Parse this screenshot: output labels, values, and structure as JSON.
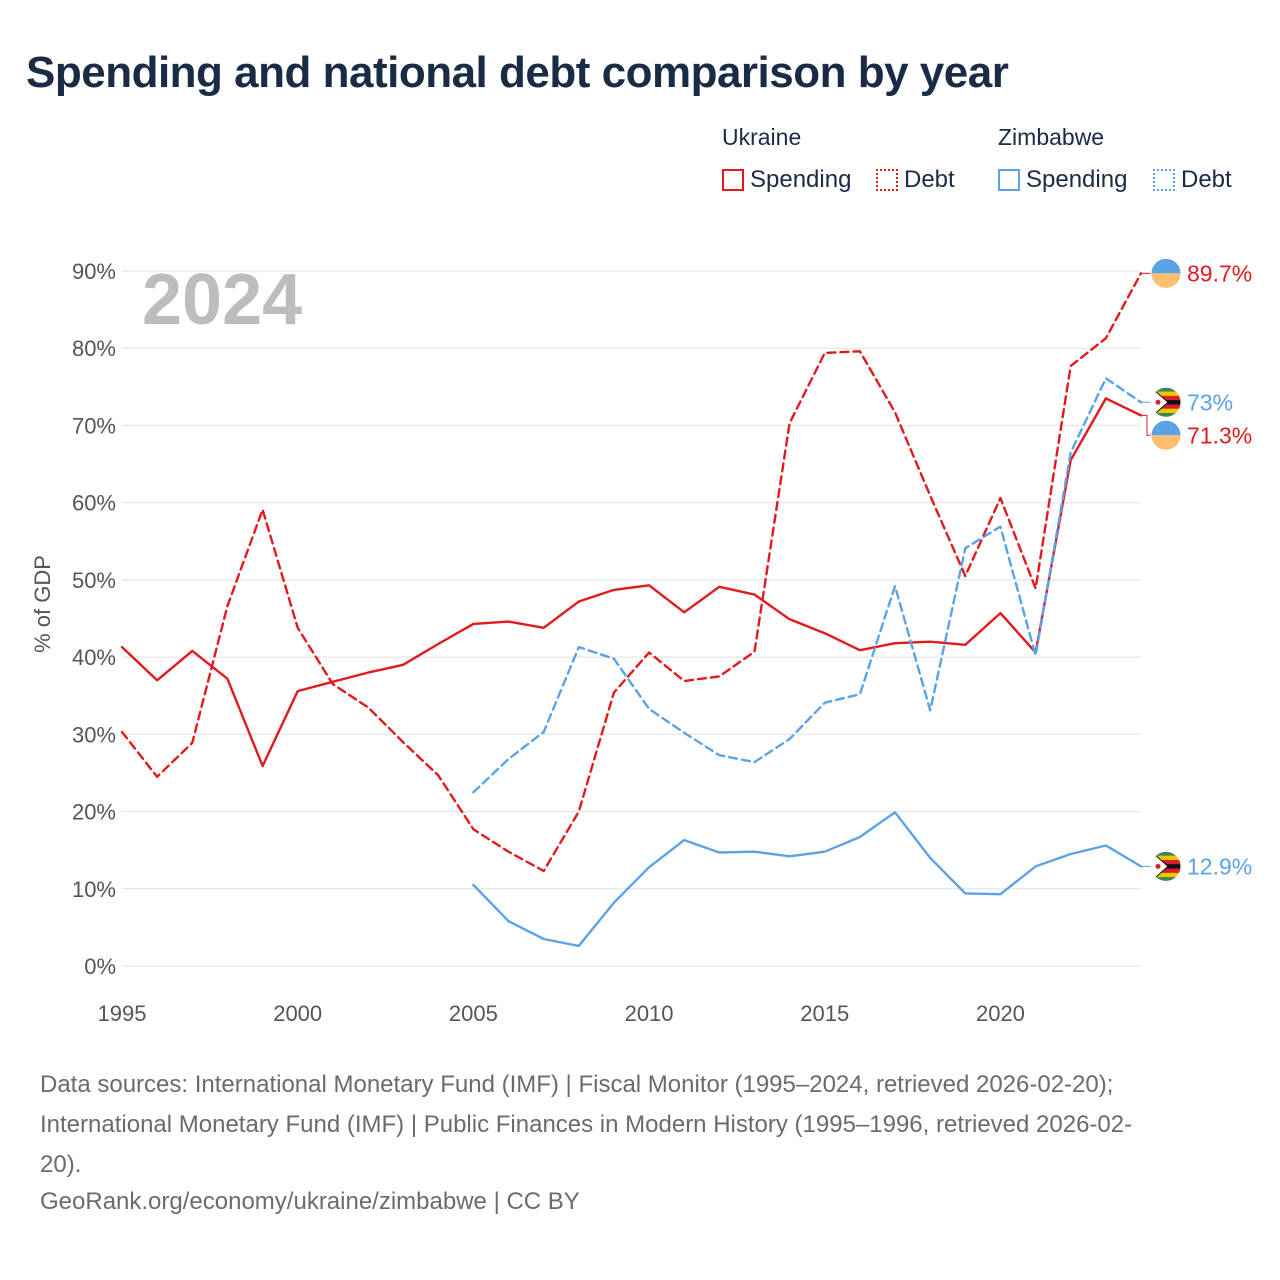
{
  "title": "Spending and national debt comparison by year",
  "legend": {
    "groups": [
      {
        "country": "Ukraine",
        "color": "#e31a1c",
        "items": [
          {
            "label": "Spending",
            "style": "solid"
          },
          {
            "label": "Debt",
            "style": "dotted"
          }
        ]
      },
      {
        "country": "Zimbabwe",
        "color": "#5aa3e6",
        "items": [
          {
            "label": "Spending",
            "style": "solid"
          },
          {
            "label": "Debt",
            "style": "dotted"
          }
        ]
      }
    ]
  },
  "chart_data": {
    "type": "line",
    "year_label": "2024",
    "ylabel": "% of GDP",
    "ylim": [
      0,
      90
    ],
    "xlim": [
      1995,
      2024
    ],
    "yticks": [
      0,
      10,
      20,
      30,
      40,
      50,
      60,
      70,
      80,
      90
    ],
    "ytick_labels": [
      "0%",
      "10%",
      "20%",
      "30%",
      "40%",
      "50%",
      "60%",
      "70%",
      "80%",
      "90%"
    ],
    "xticks": [
      1995,
      2000,
      2005,
      2010,
      2015,
      2020
    ],
    "xtick_labels": [
      "1995",
      "2000",
      "2005",
      "2010",
      "2015",
      "2020"
    ],
    "grid": true,
    "series": [
      {
        "name": "Ukraine Spending",
        "country": "Ukraine",
        "color": "#e31a1c",
        "dash": false,
        "end_label": "71.3%",
        "x": [
          1995,
          1996,
          1997,
          1998,
          1999,
          2000,
          2001,
          2002,
          2003,
          2004,
          2005,
          2006,
          2007,
          2008,
          2009,
          2010,
          2011,
          2012,
          2013,
          2014,
          2015,
          2016,
          2017,
          2018,
          2019,
          2020,
          2021,
          2022,
          2023,
          2024
        ],
        "values": [
          41.3,
          37.0,
          40.8,
          37.2,
          25.9,
          35.6,
          36.8,
          38.0,
          39.0,
          41.7,
          44.3,
          44.6,
          43.8,
          47.2,
          48.7,
          49.3,
          45.8,
          49.1,
          48.1,
          44.9,
          43.1,
          40.9,
          41.8,
          42.0,
          41.6,
          45.7,
          40.6,
          65.5,
          73.5,
          71.3
        ]
      },
      {
        "name": "Ukraine Debt",
        "country": "Ukraine",
        "color": "#e31a1c",
        "dash": true,
        "end_label": "89.7%",
        "x": [
          1995,
          1996,
          1997,
          1998,
          1999,
          2000,
          2001,
          2002,
          2003,
          2004,
          2005,
          2006,
          2007,
          2008,
          2009,
          2010,
          2011,
          2012,
          2013,
          2014,
          2015,
          2016,
          2017,
          2018,
          2019,
          2020,
          2021,
          2022,
          2023,
          2024
        ],
        "values": [
          30.3,
          24.5,
          28.9,
          46.6,
          59.1,
          43.8,
          36.5,
          33.5,
          29.0,
          24.7,
          17.7,
          14.8,
          12.3,
          20.0,
          35.4,
          40.6,
          36.9,
          37.5,
          40.7,
          70.3,
          79.4,
          79.6,
          71.7,
          60.9,
          50.5,
          60.6,
          48.9,
          77.7,
          81.3,
          89.7
        ]
      },
      {
        "name": "Zimbabwe Spending",
        "country": "Zimbabwe",
        "color": "#5aa3e6",
        "dash": false,
        "end_label": "12.9%",
        "x": [
          2005,
          2006,
          2007,
          2008,
          2009,
          2010,
          2011,
          2012,
          2013,
          2014,
          2015,
          2016,
          2017,
          2018,
          2019,
          2020,
          2021,
          2022,
          2023,
          2024
        ],
        "values": [
          10.5,
          5.8,
          3.5,
          2.6,
          8.2,
          12.8,
          16.3,
          14.7,
          14.8,
          14.2,
          14.8,
          16.7,
          19.9,
          14.0,
          9.4,
          9.3,
          12.9,
          14.5,
          15.6,
          12.9
        ]
      },
      {
        "name": "Zimbabwe Debt",
        "country": "Zimbabwe",
        "color": "#5aa3e6",
        "dash": true,
        "end_label": "73%",
        "x": [
          2005,
          2006,
          2007,
          2008,
          2009,
          2010,
          2011,
          2012,
          2013,
          2014,
          2015,
          2016,
          2017,
          2018,
          2019,
          2020,
          2021,
          2022,
          2023,
          2024
        ],
        "values": [
          22.5,
          26.8,
          30.3,
          41.3,
          39.8,
          33.3,
          30.2,
          27.3,
          26.4,
          29.4,
          34.1,
          35.2,
          49.2,
          33.1,
          54.1,
          56.9,
          40.2,
          66.5,
          76.1,
          73.0
        ]
      }
    ]
  },
  "footer": {
    "sources_line1": "Data sources: International Monetary Fund (IMF) | Fiscal Monitor (1995–2024, retrieved 2026-02-20);",
    "sources_line2": "International Monetary Fund (IMF) | Public Finances in Modern History (1995–1996, retrieved 2026-02-",
    "sources_line3": "20).",
    "attribution": "GeoRank.org/economy/ukraine/zimbabwe | CC BY"
  }
}
